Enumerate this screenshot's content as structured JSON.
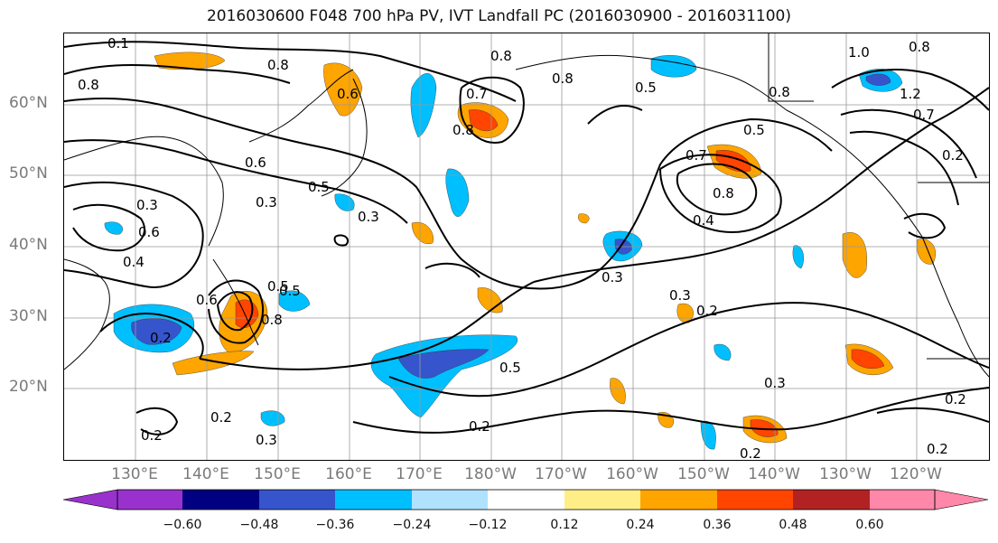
{
  "title": "2016030600 F048 700 hPa PV, IVT Landfall PC (2016030900 - 2016031100)",
  "lat_labels": [
    "60°N",
    "50°N",
    "40°N",
    "30°N",
    "20°N"
  ],
  "lon_labels": [
    "130°E",
    "140°E",
    "150°E",
    "160°E",
    "170°E",
    "180°W",
    "170°W",
    "160°W",
    "150°W",
    "140°W",
    "130°W",
    "120°W"
  ],
  "colorbar": {
    "colors": [
      "#9932cc",
      "#000080",
      "#3655cc",
      "#00bfff",
      "#b0e2ff",
      "#ffffff",
      "#ffee88",
      "#ffa500",
      "#ff4500",
      "#b22222",
      "#ff88aa"
    ],
    "ticks": [
      "−0.60",
      "−0.48",
      "−0.36",
      "−0.24",
      "−0.12",
      "0.12",
      "0.24",
      "0.36",
      "0.48",
      "0.60"
    ]
  },
  "contour_labels": [
    {
      "t": "0.1"
    },
    {
      "t": "0.8"
    },
    {
      "t": "0.8"
    },
    {
      "t": "0.6"
    },
    {
      "t": "0.7"
    },
    {
      "t": "0.8"
    },
    {
      "t": "0.8"
    },
    {
      "t": "0.5"
    },
    {
      "t": "1.0"
    },
    {
      "t": "0.8"
    },
    {
      "t": "0.8"
    },
    {
      "t": "1.2"
    },
    {
      "t": "0.7"
    },
    {
      "t": "0.5"
    },
    {
      "t": "0.8"
    },
    {
      "t": "0.2"
    },
    {
      "t": "0.6"
    },
    {
      "t": "0.5"
    },
    {
      "t": "0.3"
    },
    {
      "t": "0.3"
    },
    {
      "t": "0.3"
    },
    {
      "t": "0.6"
    },
    {
      "t": "0.4"
    },
    {
      "t": "0.5"
    },
    {
      "t": "0.7"
    },
    {
      "t": "0.8"
    },
    {
      "t": "0.4"
    },
    {
      "t": "0.3"
    },
    {
      "t": "0.6"
    },
    {
      "t": "0.2"
    },
    {
      "t": "0.8"
    },
    {
      "t": "0.5"
    },
    {
      "t": "0.3"
    },
    {
      "t": "0.2"
    },
    {
      "t": "0.5"
    },
    {
      "t": "0.3"
    },
    {
      "t": "0.2"
    },
    {
      "t": "0.2"
    },
    {
      "t": "0.3"
    },
    {
      "t": "0.2"
    },
    {
      "t": "0.2"
    },
    {
      "t": "0.2"
    },
    {
      "t": "0.2"
    }
  ]
}
